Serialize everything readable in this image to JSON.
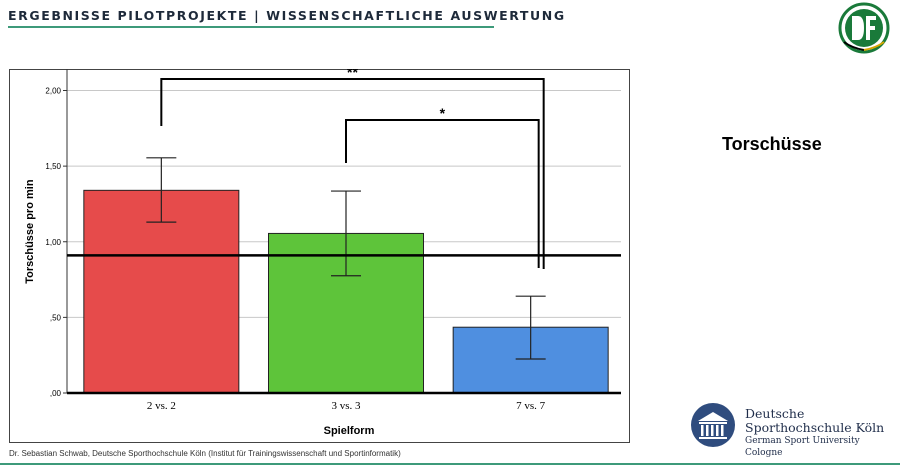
{
  "header": {
    "title": "ERGEBNISSE PILOTPROJEKTE | WISSENSCHAFTLICHE AUSWERTUNG"
  },
  "side_title": "Torschüsse",
  "footer": {
    "note": "Dr. Sebastian Schwab, Deutsche Sporthochschule Köln (Institut für Trainingswissenschaft und Sportinformatik)"
  },
  "logos": {
    "dshs": {
      "line1": "Deutsche",
      "line2": "Sporthochschule Köln",
      "line3": "German Sport University Cologne"
    },
    "dfb_icon": "dfb-crest"
  },
  "chart_data": {
    "type": "bar",
    "xlabel": "Spielform",
    "ylabel": "Torschüsse pro min",
    "categories": [
      "2 vs. 2",
      "3 vs. 3",
      "7 vs. 7"
    ],
    "values": [
      1.34,
      1.055,
      0.435
    ],
    "error_bars": [
      [
        1.13,
        1.555
      ],
      [
        0.775,
        1.335
      ],
      [
        0.225,
        0.64
      ]
    ],
    "colors": [
      "#e64b4b",
      "#5ec43a",
      "#4f8fe0"
    ],
    "ylim": [
      0,
      2.2
    ],
    "yticks": [
      0,
      0.5,
      1.0,
      1.5,
      2.0
    ],
    "ytick_labels": [
      ",00",
      ",50",
      "1,00",
      "1,50",
      "2,00"
    ],
    "reference_line": 0.91,
    "grid": true,
    "significance": [
      {
        "from": 0,
        "to": 2,
        "label": "**"
      },
      {
        "from": 1,
        "to": 2,
        "label": "*"
      }
    ]
  }
}
